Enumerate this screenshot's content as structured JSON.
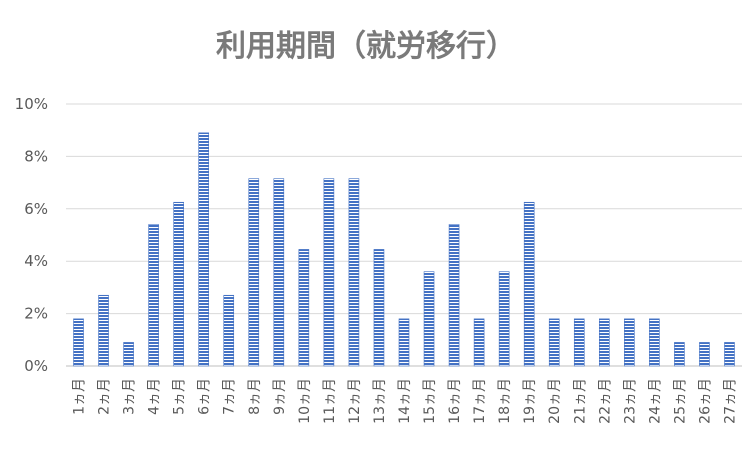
{
  "chart_data": {
    "type": "bar",
    "title": "利用期間（就労移行）",
    "xlabel": "",
    "ylabel": "",
    "categories": [
      "1ヵ月",
      "2ヵ月",
      "3ヵ月",
      "4ヵ月",
      "5ヵ月",
      "6ヵ月",
      "7ヵ月",
      "8ヵ月",
      "9ヵ月",
      "10ヵ月",
      "11ヵ月",
      "12ヵ月",
      "13ヵ月",
      "14ヵ月",
      "15ヵ月",
      "16ヵ月",
      "17ヵ月",
      "18ヵ月",
      "19ヵ月",
      "20ヵ月",
      "21ヵ月",
      "22ヵ月",
      "23ヵ月",
      "24ヵ月",
      "25ヵ月",
      "26ヵ月",
      "27ヵ月"
    ],
    "values": [
      1.8,
      2.7,
      0.9,
      5.4,
      6.25,
      8.9,
      2.7,
      7.15,
      7.15,
      4.45,
      7.15,
      7.15,
      4.45,
      1.8,
      3.6,
      5.4,
      1.8,
      3.6,
      6.25,
      1.8,
      1.8,
      1.8,
      1.8,
      1.8,
      0.9,
      0.9,
      0.9
    ],
    "ylim": [
      0,
      10
    ],
    "yticks": [
      "0%",
      "2%",
      "4%",
      "6%",
      "8%",
      "10%"
    ],
    "grid": true,
    "bar_color": "#4472c4",
    "bar_pattern": "horizontal-stripes"
  }
}
